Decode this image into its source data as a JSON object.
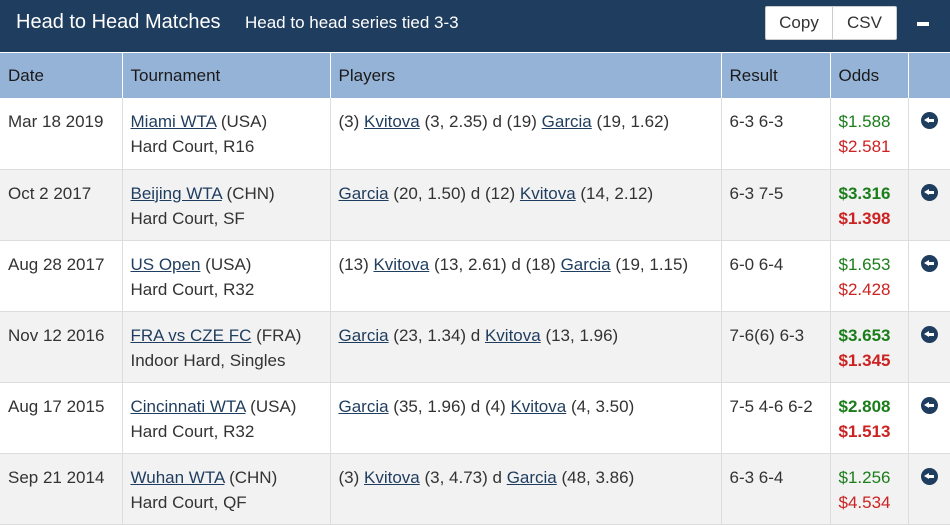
{
  "header": {
    "title": "Head to Head Matches",
    "subtitle": "Head to head series tied 3-3",
    "copy_label": "Copy",
    "csv_label": "CSV"
  },
  "columns": [
    "Date",
    "Tournament",
    "Players",
    "Result",
    "Odds"
  ],
  "rows": [
    {
      "date": "Mar 18 2019",
      "tournament": "Miami WTA",
      "country": " (USA)",
      "surface": "Hard Court, R16",
      "p1_pre": "(3) ",
      "p1": "Kvitova",
      "p1_post": " (3, 2.35) d (19) ",
      "p2": "Garcia",
      "p2_post": " (19, 1.62)",
      "result": "6-3 6-3",
      "odds1": "$1.588",
      "odds2": "$2.581"
    },
    {
      "date": "Oct 2 2017",
      "tournament": "Beijing WTA",
      "country": " (CHN)",
      "surface": "Hard Court, SF",
      "p1_pre": "",
      "p1": "Garcia",
      "p1_post": " (20, 1.50) d (12) ",
      "p2": "Kvitova",
      "p2_post": " (14, 2.12)",
      "result": "6-3 7-5",
      "odds1": "$3.316",
      "odds2": "$1.398"
    },
    {
      "date": "Aug 28 2017",
      "tournament": "US Open",
      "country": " (USA)",
      "surface": "Hard Court, R32",
      "p1_pre": "(13) ",
      "p1": "Kvitova",
      "p1_post": " (13, 2.61) d (18) ",
      "p2": "Garcia",
      "p2_post": " (19, 1.15)",
      "result": "6-0 6-4",
      "odds1": "$1.653",
      "odds2": "$2.428"
    },
    {
      "date": "Nov 12 2016",
      "tournament": "FRA vs CZE FC",
      "country": " (FRA)",
      "surface": "Indoor Hard, Singles",
      "p1_pre": "",
      "p1": "Garcia",
      "p1_post": " (23, 1.34) d ",
      "p2": "Kvitova",
      "p2_post": " (13, 1.96)",
      "result": "7-6(6) 6-3",
      "odds1": "$3.653",
      "odds2": "$1.345"
    },
    {
      "date": "Aug 17 2015",
      "tournament": "Cincinnati WTA",
      "country": " (USA)",
      "surface": "Hard Court, R32",
      "p1_pre": "",
      "p1": "Garcia",
      "p1_post": " (35, 1.96) d (4) ",
      "p2": "Kvitova",
      "p2_post": " (4, 3.50)",
      "result": "7-5 4-6 6-2",
      "odds1": "$2.808",
      "odds2": "$1.513"
    },
    {
      "date": "Sep 21 2014",
      "tournament": "Wuhan WTA",
      "country": " (CHN)",
      "surface": "Hard Court, QF",
      "p1_pre": "(3) ",
      "p1": "Kvitova",
      "p1_post": " (3, 4.73) d ",
      "p2": "Garcia",
      "p2_post": " (48, 3.86)",
      "result": "6-3 6-4",
      "odds1": "$1.256",
      "odds2": "$4.534"
    }
  ],
  "icons": {
    "row_action": "circle-arrow-left-icon",
    "collapse": "minus-icon"
  },
  "colors": {
    "header_bg": "#1f3d5e",
    "column_header_bg": "#95b3d7",
    "odds_green": "#1a7d1a",
    "odds_red": "#cc2222"
  }
}
